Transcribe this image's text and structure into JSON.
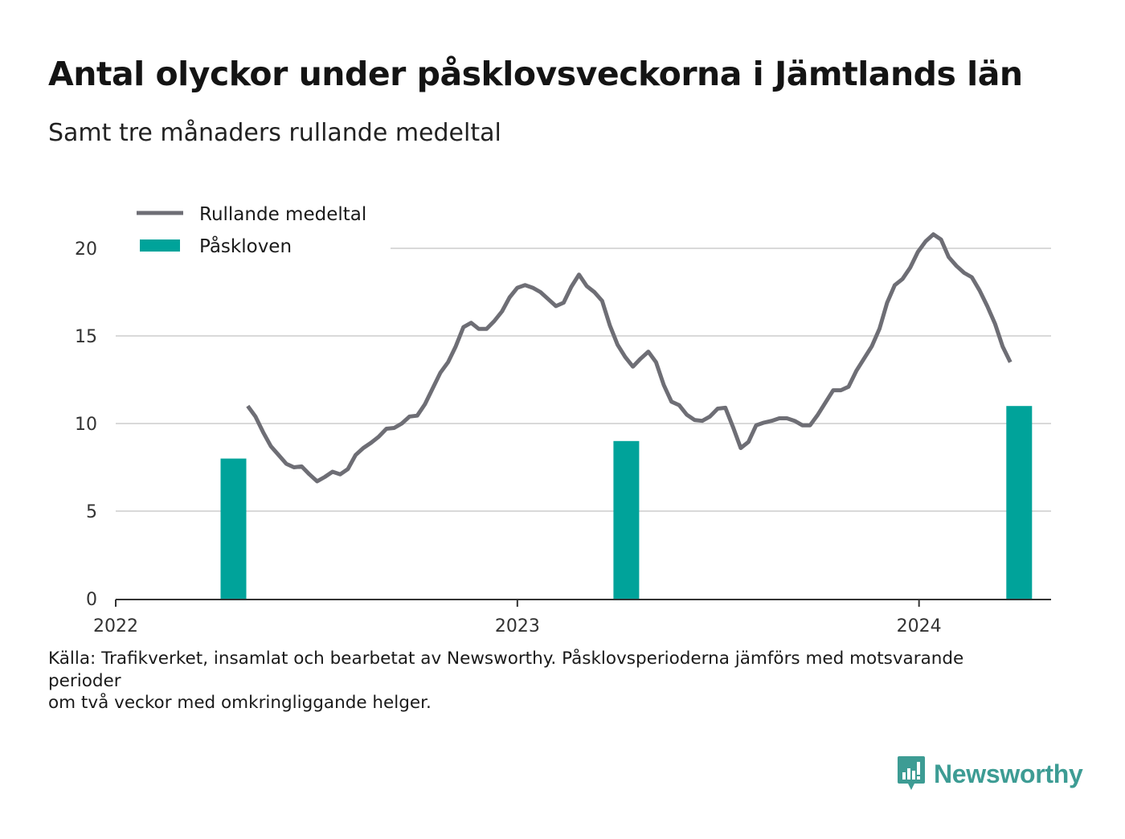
{
  "title": "Antal olyckor under påsklovsveckorna i Jämtlands län",
  "subtitle": "Samt tre månaders rullande medeltal",
  "source_lines": [
    "Källa: Trafikverket, insamlat och bearbetat av Newsworthy. Påsklovsperioderna jämförs med motsvarande perioder",
    "om två veckor med omkringliggande helger."
  ],
  "brand": "Newsworthy",
  "colors": {
    "line": "#6e6e75",
    "bar": "#00a39a",
    "grid": "#d9d9d9",
    "axis": "#333333",
    "brand": "#3d9c94"
  },
  "chart_data": {
    "type": "bar+line",
    "grid": true,
    "legend_position": "top-left",
    "ylim": [
      0,
      20
    ],
    "yticks": [
      0,
      5,
      10,
      15,
      20
    ],
    "xlim": [
      "2022-01-01",
      "2024-04-30"
    ],
    "xticks": [
      {
        "date": "2022-01-01",
        "label": "2022"
      },
      {
        "date": "2023-01-01",
        "label": "2023"
      },
      {
        "date": "2024-01-01",
        "label": "2024"
      }
    ],
    "series": [
      {
        "name": "Rullande medeltal",
        "type": "line",
        "points": [
          [
            "2022-05-01",
            11.0
          ],
          [
            "2022-05-08",
            10.4
          ],
          [
            "2022-05-15",
            9.5
          ],
          [
            "2022-05-22",
            8.7
          ],
          [
            "2022-05-29",
            8.2
          ],
          [
            "2022-06-05",
            7.7
          ],
          [
            "2022-06-12",
            7.5
          ],
          [
            "2022-06-19",
            7.55
          ],
          [
            "2022-06-26",
            7.1
          ],
          [
            "2022-07-03",
            6.7
          ],
          [
            "2022-07-10",
            6.95
          ],
          [
            "2022-07-17",
            7.25
          ],
          [
            "2022-07-24",
            7.1
          ],
          [
            "2022-07-31",
            7.4
          ],
          [
            "2022-08-07",
            8.2
          ],
          [
            "2022-08-14",
            8.6
          ],
          [
            "2022-08-21",
            8.9
          ],
          [
            "2022-08-28",
            9.25
          ],
          [
            "2022-09-04",
            9.7
          ],
          [
            "2022-09-11",
            9.75
          ],
          [
            "2022-09-18",
            10.0
          ],
          [
            "2022-09-25",
            10.4
          ],
          [
            "2022-10-02",
            10.45
          ],
          [
            "2022-10-09",
            11.1
          ],
          [
            "2022-10-16",
            12.0
          ],
          [
            "2022-10-23",
            12.9
          ],
          [
            "2022-10-30",
            13.5
          ],
          [
            "2022-11-06",
            14.4
          ],
          [
            "2022-11-13",
            15.5
          ],
          [
            "2022-11-20",
            15.75
          ],
          [
            "2022-11-27",
            15.4
          ],
          [
            "2022-12-04",
            15.4
          ],
          [
            "2022-12-11",
            15.85
          ],
          [
            "2022-12-18",
            16.4
          ],
          [
            "2022-12-25",
            17.2
          ],
          [
            "2023-01-01",
            17.75
          ],
          [
            "2023-01-08",
            17.9
          ],
          [
            "2023-01-15",
            17.75
          ],
          [
            "2023-01-22",
            17.5
          ],
          [
            "2023-01-29",
            17.1
          ],
          [
            "2023-02-05",
            16.7
          ],
          [
            "2023-02-12",
            16.9
          ],
          [
            "2023-02-19",
            17.8
          ],
          [
            "2023-02-26",
            18.5
          ],
          [
            "2023-03-05",
            17.85
          ],
          [
            "2023-03-12",
            17.5
          ],
          [
            "2023-03-19",
            17.0
          ],
          [
            "2023-03-26",
            15.6
          ],
          [
            "2023-04-02",
            14.5
          ],
          [
            "2023-04-09",
            13.8
          ],
          [
            "2023-04-16",
            13.25
          ],
          [
            "2023-04-23",
            13.7
          ],
          [
            "2023-04-30",
            14.1
          ],
          [
            "2023-05-07",
            13.5
          ],
          [
            "2023-05-14",
            12.2
          ],
          [
            "2023-05-21",
            11.25
          ],
          [
            "2023-05-28",
            11.05
          ],
          [
            "2023-06-04",
            10.5
          ],
          [
            "2023-06-11",
            10.2
          ],
          [
            "2023-06-18",
            10.15
          ],
          [
            "2023-06-25",
            10.4
          ],
          [
            "2023-07-02",
            10.85
          ],
          [
            "2023-07-09",
            10.9
          ],
          [
            "2023-07-16",
            9.8
          ],
          [
            "2023-07-23",
            8.6
          ],
          [
            "2023-07-30",
            8.95
          ],
          [
            "2023-08-06",
            9.9
          ],
          [
            "2023-08-13",
            10.05
          ],
          [
            "2023-08-20",
            10.15
          ],
          [
            "2023-08-27",
            10.3
          ],
          [
            "2023-09-03",
            10.3
          ],
          [
            "2023-09-10",
            10.15
          ],
          [
            "2023-09-17",
            9.9
          ],
          [
            "2023-09-24",
            9.9
          ],
          [
            "2023-10-01",
            10.5
          ],
          [
            "2023-10-08",
            11.2
          ],
          [
            "2023-10-15",
            11.9
          ],
          [
            "2023-10-22",
            11.9
          ],
          [
            "2023-10-29",
            12.1
          ],
          [
            "2023-11-05",
            13.0
          ],
          [
            "2023-11-12",
            13.7
          ],
          [
            "2023-11-19",
            14.4
          ],
          [
            "2023-11-26",
            15.4
          ],
          [
            "2023-12-03",
            16.9
          ],
          [
            "2023-12-10",
            17.9
          ],
          [
            "2023-12-17",
            18.25
          ],
          [
            "2023-12-24",
            18.9
          ],
          [
            "2023-12-31",
            19.8
          ],
          [
            "2024-01-07",
            20.4
          ],
          [
            "2024-01-14",
            20.8
          ],
          [
            "2024-01-21",
            20.5
          ],
          [
            "2024-01-28",
            19.5
          ],
          [
            "2024-02-04",
            19.0
          ],
          [
            "2024-02-11",
            18.6
          ],
          [
            "2024-02-18",
            18.35
          ],
          [
            "2024-02-25",
            17.6
          ],
          [
            "2024-03-03",
            16.7
          ],
          [
            "2024-03-10",
            15.7
          ],
          [
            "2024-03-17",
            14.4
          ],
          [
            "2024-03-24",
            13.5
          ]
        ]
      },
      {
        "name": "Påskloven",
        "type": "bar",
        "points": [
          [
            "2022-04-18",
            8
          ],
          [
            "2023-04-10",
            9
          ],
          [
            "2024-04-01",
            11
          ]
        ]
      }
    ]
  }
}
